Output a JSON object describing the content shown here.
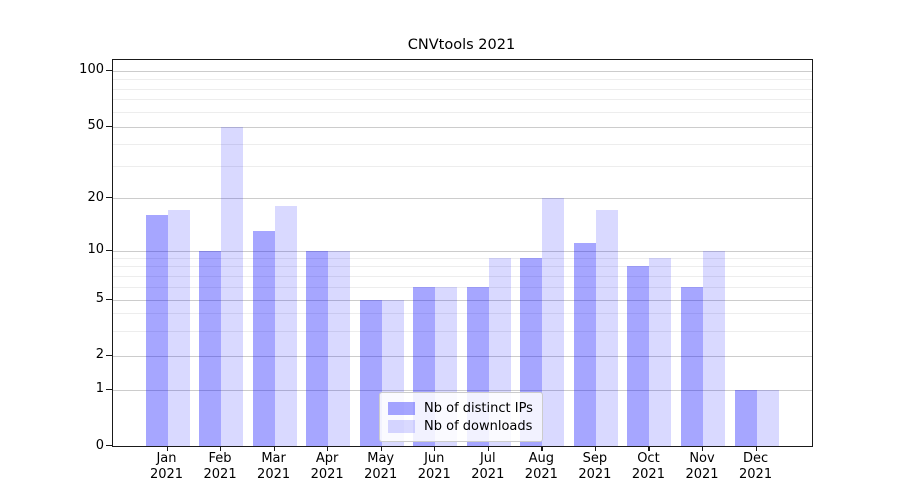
{
  "chart_data": {
    "type": "bar",
    "title": "CNVtools 2021",
    "x_months": [
      "Jan",
      "Feb",
      "Mar",
      "Apr",
      "May",
      "Jun",
      "Jul",
      "Aug",
      "Sep",
      "Oct",
      "Nov",
      "Dec"
    ],
    "x_year": "2021",
    "series": [
      {
        "name": "Nb of distinct IPs",
        "color": "#0000ff",
        "alpha": 0.35,
        "values": [
          16,
          10,
          13,
          10,
          5,
          6,
          6,
          9,
          11,
          8,
          6,
          1
        ]
      },
      {
        "name": "Nb of downloads",
        "color": "#0000ff",
        "alpha": 0.15,
        "values": [
          17,
          50,
          18,
          10,
          5,
          6,
          9,
          20,
          17,
          9,
          10,
          1
        ]
      }
    ],
    "y_axis": {
      "scale": "log with zero baseline",
      "tick_labels": [
        "0",
        "1",
        "2",
        "5",
        "10",
        "20",
        "50",
        "100"
      ],
      "tick_values": [
        0,
        1,
        2,
        5,
        10,
        20,
        50,
        100
      ],
      "minor_gridline_values": [
        3,
        4,
        6,
        7,
        8,
        9,
        30,
        40,
        60,
        70,
        80,
        90
      ],
      "ylim": [
        0,
        120
      ]
    },
    "legend": {
      "position": "lower center",
      "entries": [
        "Nb of distinct IPs",
        "Nb of downloads"
      ]
    },
    "grid": "horizontal major and minor gridlines"
  },
  "colors": {
    "bar_distinct_ips_flat": "#a6a6ff",
    "bar_downloads_flat": "#d9d9ff",
    "grid_major": "#cccccc",
    "grid_minor": "#ededed",
    "spine": "#1a1a1a",
    "text": "#000000",
    "legend_border": "#cccccc",
    "legend_background": "#ffffff"
  }
}
